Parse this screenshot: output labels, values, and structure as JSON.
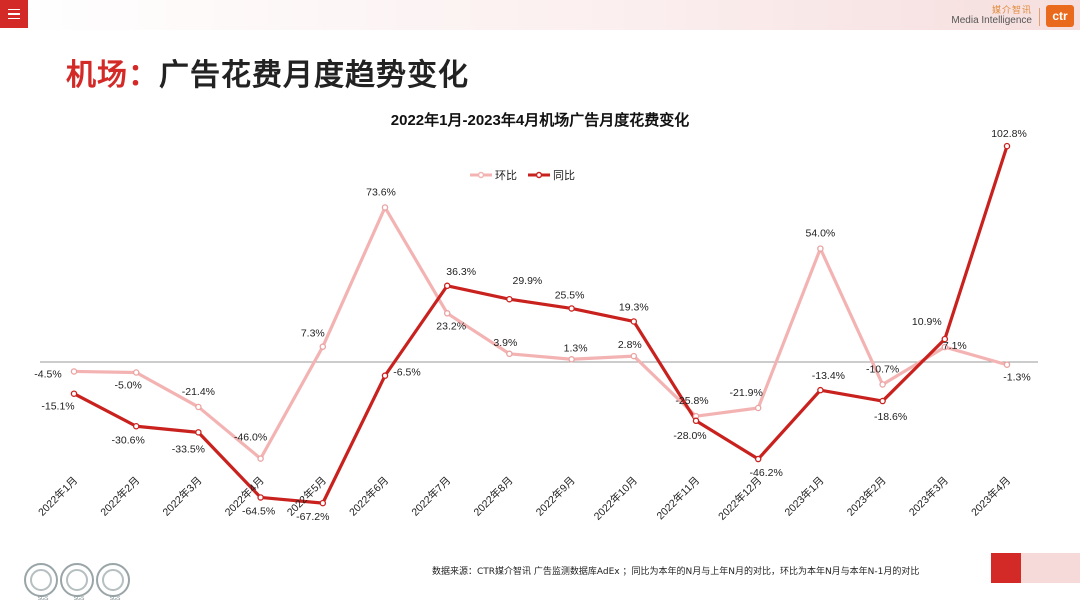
{
  "header": {
    "menu_icon": "hamburger-menu-icon",
    "brand_cn": "媒介智讯",
    "brand_en": "Media Intelligence",
    "logo_text": "ctr",
    "logo_color": "#ea6a1d"
  },
  "page": {
    "title_prefix": "机场：",
    "title_rest": "广告花费月度趋势变化",
    "accent_color": "#d42a27"
  },
  "chart_data": {
    "type": "line",
    "title": "2022年1月-2023年4月机场广告月度花费变化",
    "categories": [
      "2022年1月",
      "2022年2月",
      "2022年3月",
      "2022年4月",
      "2022年5月",
      "2022年6月",
      "2022年7月",
      "2022年8月",
      "2022年9月",
      "2022年10月",
      "2022年11月",
      "2022年12月",
      "2023年1月",
      "2023年2月",
      "2023年3月",
      "2023年4月"
    ],
    "series": [
      {
        "name": "环比",
        "color": "#f4b3b3",
        "values": [
          -4.5,
          -5.0,
          -21.4,
          -46.0,
          7.3,
          73.6,
          23.2,
          3.9,
          1.3,
          2.8,
          -25.8,
          -21.9,
          54.0,
          -10.7,
          7.1,
          -1.3
        ],
        "labels": [
          "-4.5%",
          "-5.0%",
          "-21.4%",
          "-46.0%",
          "7.3%",
          "73.6%",
          "23.2%",
          "3.9%",
          "1.3%",
          "2.8%",
          "-25.8%",
          "-21.9%",
          "54.0%",
          "-10.7%",
          "7.1%",
          "-1.3%"
        ]
      },
      {
        "name": "同比",
        "color": "#c9221e",
        "values": [
          -15.1,
          -30.6,
          -33.5,
          -64.5,
          -67.2,
          -6.5,
          36.3,
          29.9,
          25.5,
          19.3,
          -28.0,
          -46.2,
          -13.4,
          -18.6,
          10.9,
          102.8
        ],
        "labels": [
          "-15.1%",
          "-30.6%",
          "-33.5%",
          "-64.5%",
          "-67.2%",
          "-6.5%",
          "36.3%",
          "29.9%",
          "25.5%",
          "19.3%",
          "-28.0%",
          "-46.2%",
          "-13.4%",
          "-18.6%",
          "10.9%",
          "102.8%"
        ]
      }
    ],
    "ylim": [
      -80,
      110
    ],
    "xlabel": "",
    "ylabel": "",
    "legend": "top-center",
    "grid": false
  },
  "footer": {
    "note": "数据来源：CTR媒介智讯 广告监测数据库AdEx ；同比为本年的N月与上年N月的对比，环比为本年N月与本年N-1月的对比",
    "seal_text": "SGS",
    "seal_icons": [
      "sgs-certification-icon",
      "sgs-certification-icon",
      "sgs-certification-icon"
    ]
  }
}
